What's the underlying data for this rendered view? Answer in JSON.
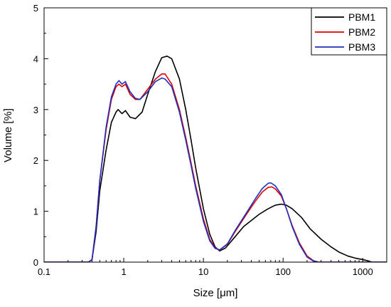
{
  "chart_data": {
    "type": "line",
    "xlabel": "Size [μm]",
    "ylabel": "Volume [%]",
    "x_scale": "log",
    "xlim": [
      0.1,
      2000
    ],
    "ylim": [
      0,
      5
    ],
    "x_ticks": [
      0.1,
      1,
      10,
      100,
      1000
    ],
    "x_tick_labels": [
      "0.1",
      "1",
      "10",
      "100",
      "1000"
    ],
    "y_ticks": [
      0,
      1,
      2,
      3,
      4,
      5
    ],
    "y_tick_labels": [
      "0",
      "1",
      "2",
      "3",
      "4",
      "5"
    ],
    "grid": false,
    "legend_position": "top-right",
    "series": [
      {
        "name": "PBM1",
        "color": "#000000",
        "points": [
          [
            0.1,
            0
          ],
          [
            0.36,
            0
          ],
          [
            0.4,
            0.05
          ],
          [
            0.45,
            0.6
          ],
          [
            0.5,
            1.4
          ],
          [
            0.6,
            2.2
          ],
          [
            0.7,
            2.75
          ],
          [
            0.8,
            2.95
          ],
          [
            0.85,
            3.0
          ],
          [
            0.95,
            2.92
          ],
          [
            1.05,
            2.98
          ],
          [
            1.2,
            2.85
          ],
          [
            1.4,
            2.82
          ],
          [
            1.7,
            2.95
          ],
          [
            2.0,
            3.3
          ],
          [
            2.5,
            3.75
          ],
          [
            3.0,
            4.02
          ],
          [
            3.5,
            4.05
          ],
          [
            4.0,
            4.0
          ],
          [
            5.0,
            3.6
          ],
          [
            6.0,
            3.0
          ],
          [
            7.0,
            2.4
          ],
          [
            8.0,
            1.85
          ],
          [
            10.0,
            1.05
          ],
          [
            12.0,
            0.55
          ],
          [
            14.0,
            0.3
          ],
          [
            16.0,
            0.22
          ],
          [
            19.0,
            0.28
          ],
          [
            25.0,
            0.5
          ],
          [
            32.0,
            0.7
          ],
          [
            40.0,
            0.82
          ],
          [
            50.0,
            0.94
          ],
          [
            65.0,
            1.05
          ],
          [
            80.0,
            1.12
          ],
          [
            95.0,
            1.14
          ],
          [
            110.0,
            1.12
          ],
          [
            130.0,
            1.05
          ],
          [
            170.0,
            0.88
          ],
          [
            220.0,
            0.65
          ],
          [
            300.0,
            0.45
          ],
          [
            400.0,
            0.3
          ],
          [
            500.0,
            0.2
          ],
          [
            650.0,
            0.12
          ],
          [
            800.0,
            0.08
          ],
          [
            1000.0,
            0.05
          ],
          [
            1200.0,
            0.02
          ],
          [
            1300.0,
            0
          ],
          [
            2000.0,
            0
          ]
        ]
      },
      {
        "name": "PBM2",
        "color": "#e00000",
        "points": [
          [
            0.1,
            0
          ],
          [
            0.36,
            0
          ],
          [
            0.4,
            0.05
          ],
          [
            0.45,
            0.7
          ],
          [
            0.5,
            1.6
          ],
          [
            0.6,
            2.6
          ],
          [
            0.7,
            3.2
          ],
          [
            0.8,
            3.45
          ],
          [
            0.87,
            3.5
          ],
          [
            0.95,
            3.45
          ],
          [
            1.05,
            3.5
          ],
          [
            1.2,
            3.3
          ],
          [
            1.4,
            3.2
          ],
          [
            1.6,
            3.2
          ],
          [
            2.0,
            3.4
          ],
          [
            2.5,
            3.6
          ],
          [
            3.0,
            3.7
          ],
          [
            3.3,
            3.7
          ],
          [
            4.0,
            3.5
          ],
          [
            5.0,
            3.0
          ],
          [
            6.0,
            2.45
          ],
          [
            7.0,
            1.95
          ],
          [
            8.0,
            1.5
          ],
          [
            10.0,
            0.85
          ],
          [
            12.0,
            0.45
          ],
          [
            14.0,
            0.28
          ],
          [
            16.0,
            0.24
          ],
          [
            20.0,
            0.35
          ],
          [
            25.0,
            0.6
          ],
          [
            35.0,
            0.95
          ],
          [
            45.0,
            1.2
          ],
          [
            55.0,
            1.38
          ],
          [
            65.0,
            1.47
          ],
          [
            72.0,
            1.48
          ],
          [
            80.0,
            1.44
          ],
          [
            95.0,
            1.3
          ],
          [
            110.0,
            1.05
          ],
          [
            130.0,
            0.72
          ],
          [
            160.0,
            0.38
          ],
          [
            200.0,
            0.12
          ],
          [
            240.0,
            0.03
          ],
          [
            280.0,
            0
          ],
          [
            2000.0,
            0
          ]
        ]
      },
      {
        "name": "PBM3",
        "color": "#1f2fbf",
        "points": [
          [
            0.1,
            0
          ],
          [
            0.36,
            0
          ],
          [
            0.4,
            0.05
          ],
          [
            0.45,
            0.7
          ],
          [
            0.5,
            1.6
          ],
          [
            0.6,
            2.65
          ],
          [
            0.7,
            3.25
          ],
          [
            0.8,
            3.5
          ],
          [
            0.87,
            3.57
          ],
          [
            0.95,
            3.5
          ],
          [
            1.05,
            3.55
          ],
          [
            1.2,
            3.35
          ],
          [
            1.4,
            3.22
          ],
          [
            1.6,
            3.2
          ],
          [
            2.0,
            3.35
          ],
          [
            2.5,
            3.55
          ],
          [
            3.0,
            3.62
          ],
          [
            3.3,
            3.6
          ],
          [
            4.0,
            3.45
          ],
          [
            5.0,
            2.95
          ],
          [
            6.0,
            2.4
          ],
          [
            7.0,
            1.9
          ],
          [
            8.0,
            1.45
          ],
          [
            10.0,
            0.8
          ],
          [
            12.0,
            0.42
          ],
          [
            14.0,
            0.27
          ],
          [
            16.0,
            0.24
          ],
          [
            20.0,
            0.36
          ],
          [
            25.0,
            0.62
          ],
          [
            35.0,
            0.98
          ],
          [
            45.0,
            1.25
          ],
          [
            55.0,
            1.45
          ],
          [
            65.0,
            1.55
          ],
          [
            70.0,
            1.56
          ],
          [
            80.0,
            1.5
          ],
          [
            95.0,
            1.33
          ],
          [
            110.0,
            1.05
          ],
          [
            130.0,
            0.7
          ],
          [
            160.0,
            0.35
          ],
          [
            200.0,
            0.1
          ],
          [
            240.0,
            0.02
          ],
          [
            280.0,
            0
          ],
          [
            2000.0,
            0
          ]
        ]
      }
    ]
  }
}
